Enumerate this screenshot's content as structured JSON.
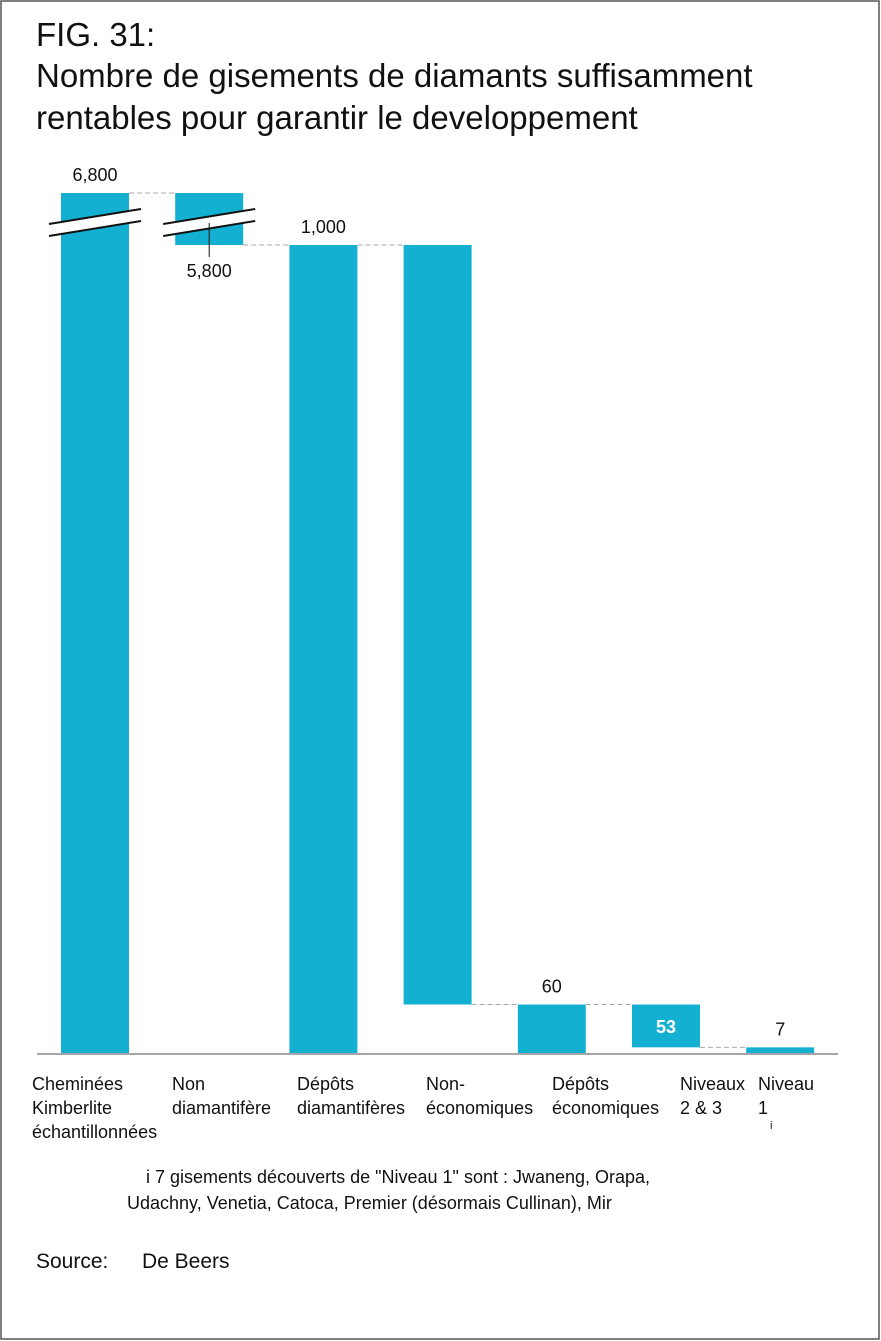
{
  "chart_data": {
    "type": "waterfall",
    "fig": "FIG. 31:",
    "title": [
      "Nombre de gisements de diamants suffisamment",
      "rentables pour garantir le developpement"
    ],
    "categories": [
      [
        "Cheminées",
        "Kimberlite",
        "échantillonnées"
      ],
      [
        "Non",
        "diamantifère"
      ],
      [
        "Dépôts",
        "diamantifères"
      ],
      [
        "Non-",
        "économiques"
      ],
      [
        "Dépôts",
        "économiques"
      ],
      [
        "Niveaux",
        "2 & 3"
      ],
      [
        "Niveau",
        "1"
      ]
    ],
    "category_note_marker": "i",
    "values": [
      6800,
      5800,
      1000,
      940,
      60,
      53,
      7
    ],
    "kinds": [
      "total",
      "decrease",
      "total",
      "decrease",
      "total",
      "decrease",
      "total"
    ],
    "value_labels": [
      "6,800",
      "5,800",
      "1,000",
      null,
      "60",
      "53",
      "7"
    ],
    "color": "#14b0d2",
    "axis_break": true,
    "footnote": [
      "i 7 gisements découverts de \"Niveau 1\" sont :  Jwaneng, Orapa,",
      "Udachny, Venetia, Catoca, Premier (désormais Cullinan), Mir"
    ],
    "source_label": "Source:",
    "source": "De Beers"
  }
}
